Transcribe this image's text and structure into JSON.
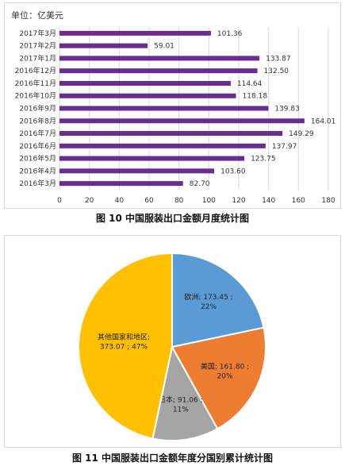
{
  "chart_data": [
    {
      "type": "bar",
      "orientation": "horizontal",
      "unit_label": "单位：亿美元",
      "caption": "图 10  中国服装出口金额月度统计图",
      "categories": [
        "2017年3月",
        "2017年2月",
        "2017年1月",
        "2016年12月",
        "2016年11月",
        "2016年10月",
        "2016年9月",
        "2016年8月",
        "2016年7月",
        "2016年6月",
        "2016年5月",
        "2016年4月",
        "2016年3月"
      ],
      "values": [
        101.36,
        59.01,
        133.87,
        132.5,
        114.64,
        118.18,
        139.83,
        164.01,
        149.29,
        137.97,
        123.75,
        103.6,
        82.7
      ],
      "value_labels": [
        "101.36",
        "59.01",
        "133.87",
        "132.50",
        "114.64",
        "118.18",
        "139.83",
        "164.01",
        "149.29",
        "137.97",
        "123.75",
        "103.60",
        "82.70"
      ],
      "xlim": [
        0,
        180
      ],
      "xticks": [
        "0",
        "20",
        "40",
        "60",
        "80",
        "100",
        "120",
        "140",
        "160",
        "180"
      ],
      "gridlines": true,
      "bar_color": "#6a2c91"
    },
    {
      "type": "pie",
      "caption": "图 11  中国服装出口金额年度分国别累计统计图",
      "slices": [
        {
          "label": "欧洲; 173.45 ;",
          "value": 173.45,
          "pct_label": "22%",
          "color": "#5b9bd5"
        },
        {
          "label": "美国; 161.80 ;",
          "value": 161.8,
          "pct_label": "20%",
          "color": "#ed7d31"
        },
        {
          "label": "日本; 91.06 ;",
          "value": 91.06,
          "pct_label": "11%",
          "color": "#a5a5a5"
        },
        {
          "label": "其他国家和地区;",
          "value": 373.07,
          "value_line": "373.07 ; 47%",
          "pct_label": "",
          "color": "#ffc000"
        }
      ]
    }
  ]
}
